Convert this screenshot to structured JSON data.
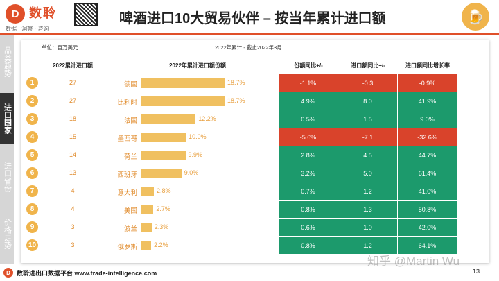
{
  "brand": {
    "mark": "D",
    "name": "数聆",
    "slogan": "数据 · 洞察 · 咨询"
  },
  "page_title": "啤酒进口10大贸易伙伴 – 按当年累计进口额",
  "badge_icon": "beer-mug-icon",
  "side_nav": [
    {
      "label": "品类趋势",
      "active": false
    },
    {
      "label": "进口国家",
      "active": true
    },
    {
      "label": "进口省份",
      "active": false
    },
    {
      "label": "价格走势",
      "active": false
    }
  ],
  "meta": {
    "unit": "单位：百万美元",
    "period": "2022年累计 - 截止2022年3月"
  },
  "columns": {
    "count": "2022累计进口额",
    "share": "2022年累计进口额份额",
    "share_yoy": "份额同比+/-",
    "amount_yoy": "进口额同比+/-",
    "growth_yoy": "进口额同比增长率"
  },
  "colors": {
    "accent": "#e0502a",
    "bar": "#f0c060",
    "positive": "#1c9a6c",
    "negative": "#d9432b",
    "rank": "#f0b44b"
  },
  "chart_data": {
    "type": "table",
    "rows": [
      {
        "rank": "1",
        "country": "德国",
        "value": "27",
        "share": 18.7,
        "share_label": "18.7%",
        "share_yoy": "-1.1%",
        "amount_yoy": "-0.3",
        "growth": "-0.9%",
        "status": "negative"
      },
      {
        "rank": "2",
        "country": "比利时",
        "value": "27",
        "share": 18.7,
        "share_label": "18.7%",
        "share_yoy": "4.9%",
        "amount_yoy": "8.0",
        "growth": "41.9%",
        "status": "positive"
      },
      {
        "rank": "3",
        "country": "法国",
        "value": "18",
        "share": 12.2,
        "share_label": "12.2%",
        "share_yoy": "0.5%",
        "amount_yoy": "1.5",
        "growth": "9.0%",
        "status": "positive"
      },
      {
        "rank": "4",
        "country": "墨西哥",
        "value": "15",
        "share": 10.0,
        "share_label": "10.0%",
        "share_yoy": "-5.6%",
        "amount_yoy": "-7.1",
        "growth": "-32.6%",
        "status": "negative"
      },
      {
        "rank": "5",
        "country": "荷兰",
        "value": "14",
        "share": 9.9,
        "share_label": "9.9%",
        "share_yoy": "2.8%",
        "amount_yoy": "4.5",
        "growth": "44.7%",
        "status": "positive"
      },
      {
        "rank": "6",
        "country": "西班牙",
        "value": "13",
        "share": 9.0,
        "share_label": "9.0%",
        "share_yoy": "3.2%",
        "amount_yoy": "5.0",
        "growth": "61.4%",
        "status": "positive"
      },
      {
        "rank": "7",
        "country": "意大利",
        "value": "4",
        "share": 2.8,
        "share_label": "2.8%",
        "share_yoy": "0.7%",
        "amount_yoy": "1.2",
        "growth": "41.0%",
        "status": "positive"
      },
      {
        "rank": "8",
        "country": "美国",
        "value": "4",
        "share": 2.7,
        "share_label": "2.7%",
        "share_yoy": "0.8%",
        "amount_yoy": "1.3",
        "growth": "50.8%",
        "status": "positive"
      },
      {
        "rank": "9",
        "country": "波兰",
        "value": "3",
        "share": 2.3,
        "share_label": "2.3%",
        "share_yoy": "0.6%",
        "amount_yoy": "1.0",
        "growth": "42.0%",
        "status": "positive"
      },
      {
        "rank": "10",
        "country": "俄罗斯",
        "value": "3",
        "share": 2.2,
        "share_label": "2.2%",
        "share_yoy": "0.8%",
        "amount_yoy": "1.2",
        "growth": "64.1%",
        "status": "positive"
      }
    ]
  },
  "footer": {
    "text": "数聆进出口数据平台 www.trade-intelligence.com",
    "page": "13"
  },
  "watermark": "知乎 @Martin Wu"
}
